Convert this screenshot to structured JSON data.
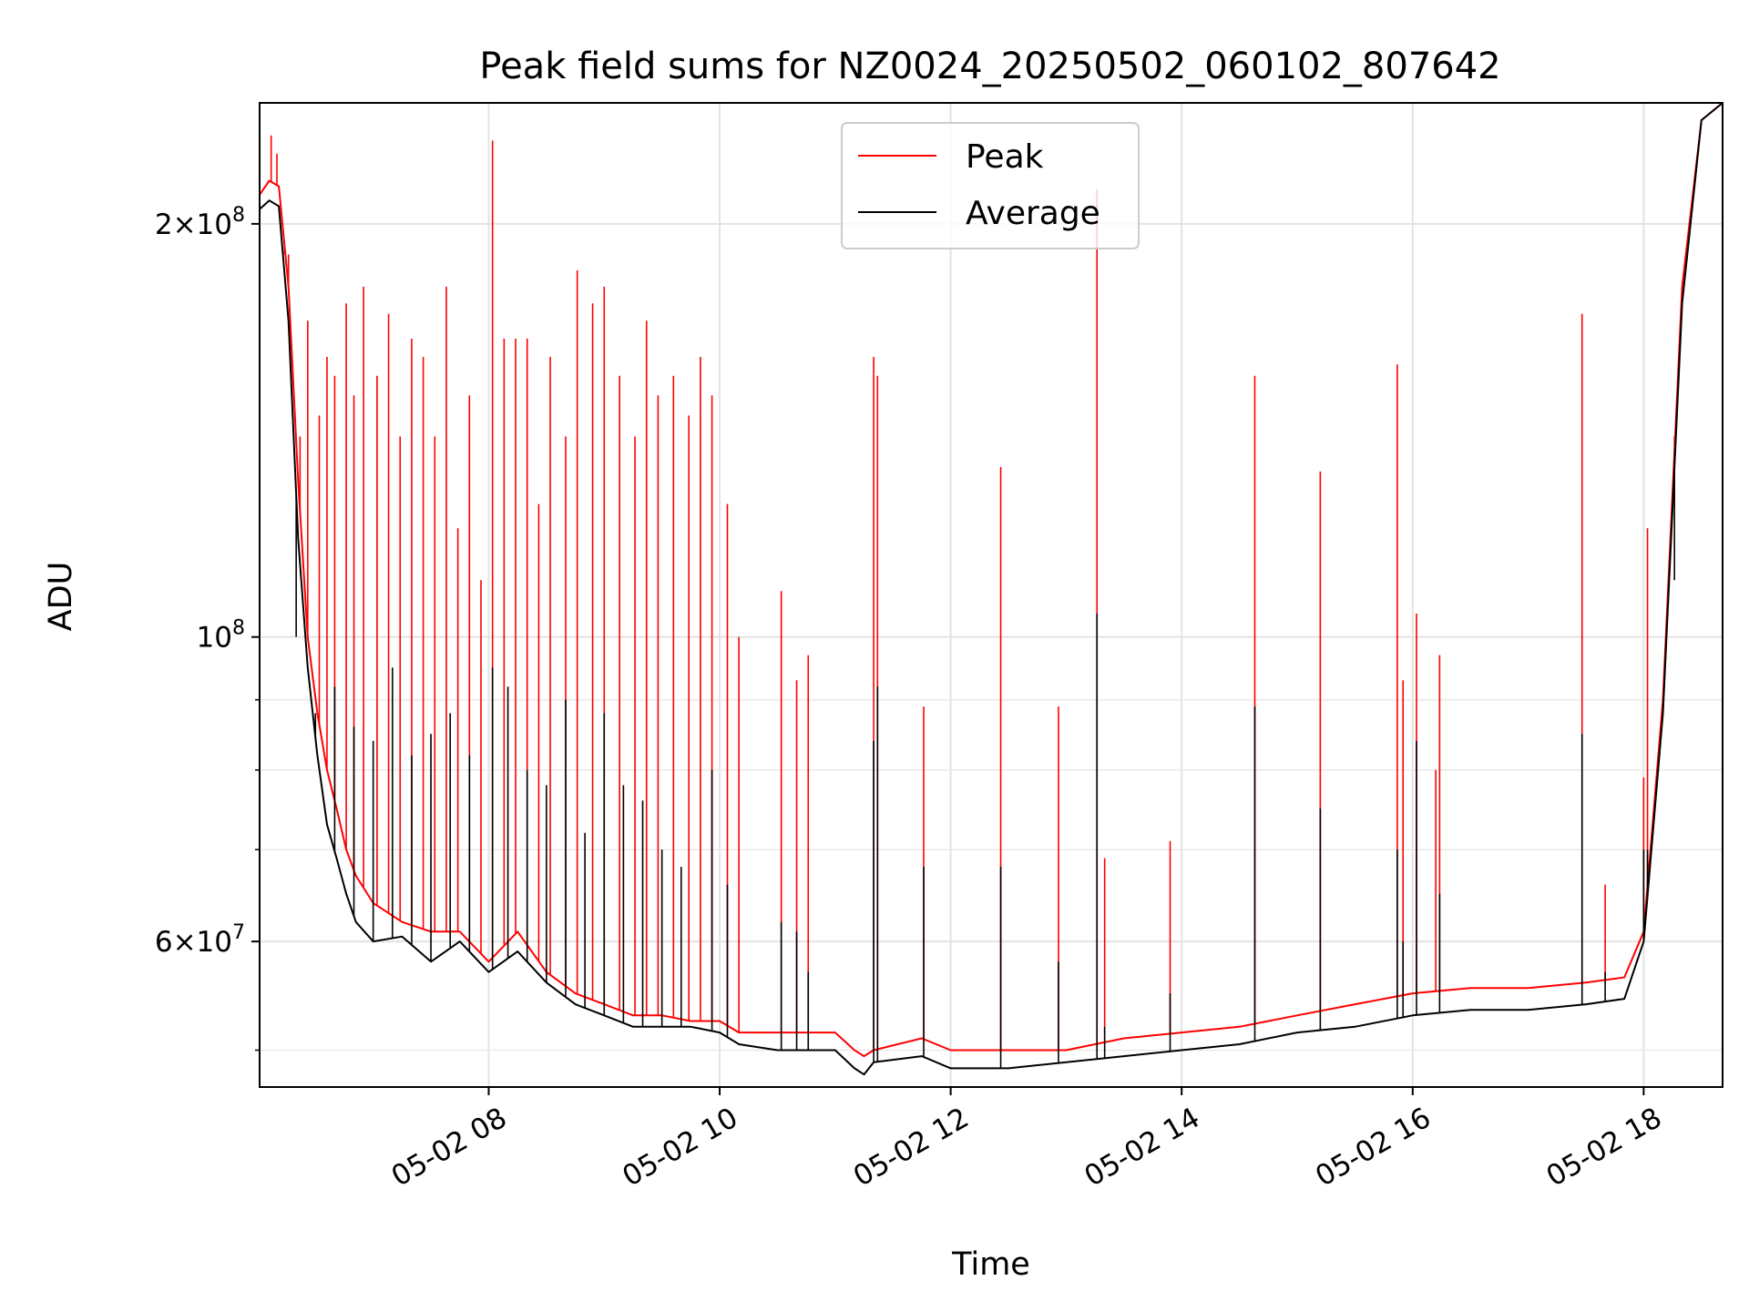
{
  "chart_data": {
    "type": "line",
    "title": "Peak field sums for NZ0024_20250502_060102_807642",
    "xlabel": "Time",
    "ylabel": "ADU",
    "y_scale": "log",
    "ylim": [
      47000000,
      245000000
    ],
    "xlim": [
      "2025-05-02T06:01",
      "2025-05-02T18:41"
    ],
    "grid": true,
    "legend": {
      "position": "upper center"
    },
    "x_tick_labels": [
      "05-02 08",
      "05-02 10",
      "05-02 12",
      "05-02 14",
      "05-02 16",
      "05-02 18"
    ],
    "x_tick_values": [
      "2025-05-02T08:00",
      "2025-05-02T10:00",
      "2025-05-02T12:00",
      "2025-05-02T14:00",
      "2025-05-02T16:00",
      "2025-05-02T18:00"
    ],
    "y_tick_labels": [
      {
        "value": 200000000,
        "mantissa": "2",
        "exponent": "8"
      },
      {
        "value": 100000000,
        "mantissa": "",
        "exponent": "8"
      },
      {
        "value": 60000000,
        "mantissa": "6",
        "exponent": "7"
      }
    ],
    "y_minor_ticks": [
      50000000,
      70000000,
      80000000,
      90000000
    ],
    "series": [
      {
        "name": "Peak",
        "color": "#ff0000",
        "x": [
          "06:01",
          "06:06",
          "06:11",
          "06:16",
          "06:21",
          "06:26",
          "06:31",
          "06:36",
          "06:41",
          "06:46",
          "06:51",
          "07:00",
          "07:15",
          "07:30",
          "07:45",
          "08:00",
          "08:15",
          "08:30",
          "08:45",
          "09:00",
          "09:15",
          "09:30",
          "09:45",
          "10:00",
          "10:10",
          "10:30",
          "11:00",
          "11:10",
          "11:15",
          "11:20",
          "11:45",
          "12:00",
          "12:30",
          "13:00",
          "13:30",
          "14:00",
          "14:30",
          "15:00",
          "15:30",
          "16:00",
          "16:30",
          "17:00",
          "17:30",
          "17:50",
          "18:00",
          "18:10",
          "18:20",
          "18:30",
          "18:41"
        ],
        "y": [
          210000000,
          215000000,
          213000000,
          180000000,
          130000000,
          100000000,
          88000000,
          80000000,
          75000000,
          70000000,
          67000000,
          64000000,
          62000000,
          61000000,
          61000000,
          58000000,
          61000000,
          57000000,
          55000000,
          54000000,
          53000000,
          53000000,
          52500000,
          52500000,
          51500000,
          51500000,
          51500000,
          50000000,
          49500000,
          50000000,
          51000000,
          50000000,
          50000000,
          50000000,
          51000000,
          51500000,
          52000000,
          53000000,
          54000000,
          55000000,
          55500000,
          55500000,
          56000000,
          56500000,
          61000000,
          90000000,
          180000000,
          238000000,
          245000000
        ],
        "spikes": [
          {
            "t": "06:07",
            "y": 232000000
          },
          {
            "t": "06:10",
            "y": 225000000
          },
          {
            "t": "06:14",
            "y": 190000000
          },
          {
            "t": "06:16",
            "y": 190000000
          },
          {
            "t": "06:22",
            "y": 140000000
          },
          {
            "t": "06:26",
            "y": 170000000
          },
          {
            "t": "06:32",
            "y": 145000000
          },
          {
            "t": "06:36",
            "y": 160000000
          },
          {
            "t": "06:40",
            "y": 155000000
          },
          {
            "t": "06:46",
            "y": 175000000
          },
          {
            "t": "06:50",
            "y": 150000000
          },
          {
            "t": "06:55",
            "y": 180000000
          },
          {
            "t": "07:02",
            "y": 155000000
          },
          {
            "t": "07:08",
            "y": 172000000
          },
          {
            "t": "07:14",
            "y": 140000000
          },
          {
            "t": "07:20",
            "y": 165000000
          },
          {
            "t": "07:26",
            "y": 160000000
          },
          {
            "t": "07:32",
            "y": 140000000
          },
          {
            "t": "07:38",
            "y": 180000000
          },
          {
            "t": "07:44",
            "y": 120000000
          },
          {
            "t": "07:50",
            "y": 150000000
          },
          {
            "t": "07:56",
            "y": 110000000
          },
          {
            "t": "08:02",
            "y": 230000000
          },
          {
            "t": "08:08",
            "y": 165000000
          },
          {
            "t": "08:14",
            "y": 165000000
          },
          {
            "t": "08:20",
            "y": 165000000
          },
          {
            "t": "08:26",
            "y": 125000000
          },
          {
            "t": "08:32",
            "y": 160000000
          },
          {
            "t": "08:40",
            "y": 140000000
          },
          {
            "t": "08:46",
            "y": 185000000
          },
          {
            "t": "08:54",
            "y": 175000000
          },
          {
            "t": "09:00",
            "y": 180000000
          },
          {
            "t": "09:08",
            "y": 155000000
          },
          {
            "t": "09:16",
            "y": 140000000
          },
          {
            "t": "09:22",
            "y": 170000000
          },
          {
            "t": "09:28",
            "y": 150000000
          },
          {
            "t": "09:36",
            "y": 155000000
          },
          {
            "t": "09:44",
            "y": 145000000
          },
          {
            "t": "09:50",
            "y": 160000000
          },
          {
            "t": "09:56",
            "y": 150000000
          },
          {
            "t": "10:04",
            "y": 125000000
          },
          {
            "t": "10:10",
            "y": 100000000
          },
          {
            "t": "10:32",
            "y": 108000000
          },
          {
            "t": "10:40",
            "y": 93000000
          },
          {
            "t": "10:46",
            "y": 97000000
          },
          {
            "t": "11:20",
            "y": 160000000
          },
          {
            "t": "11:22",
            "y": 155000000
          },
          {
            "t": "11:46",
            "y": 89000000
          },
          {
            "t": "12:26",
            "y": 133000000
          },
          {
            "t": "12:56",
            "y": 89000000
          },
          {
            "t": "13:16",
            "y": 212000000
          },
          {
            "t": "13:20",
            "y": 69000000
          },
          {
            "t": "13:54",
            "y": 71000000
          },
          {
            "t": "14:38",
            "y": 155000000
          },
          {
            "t": "15:12",
            "y": 132000000
          },
          {
            "t": "15:52",
            "y": 158000000
          },
          {
            "t": "15:55",
            "y": 93000000
          },
          {
            "t": "16:02",
            "y": 104000000
          },
          {
            "t": "16:12",
            "y": 80000000
          },
          {
            "t": "16:14",
            "y": 97000000
          },
          {
            "t": "17:28",
            "y": 172000000
          },
          {
            "t": "17:40",
            "y": 66000000
          },
          {
            "t": "18:00",
            "y": 79000000
          },
          {
            "t": "18:02",
            "y": 120000000
          },
          {
            "t": "18:16",
            "y": 140000000
          }
        ]
      },
      {
        "name": "Average",
        "color": "#000000",
        "x": [
          "06:01",
          "06:06",
          "06:11",
          "06:16",
          "06:21",
          "06:26",
          "06:31",
          "06:36",
          "06:41",
          "06:46",
          "06:51",
          "07:00",
          "07:15",
          "07:30",
          "07:45",
          "08:00",
          "08:15",
          "08:30",
          "08:45",
          "09:00",
          "09:15",
          "09:30",
          "09:45",
          "10:00",
          "10:10",
          "10:30",
          "11:00",
          "11:10",
          "11:15",
          "11:20",
          "11:45",
          "12:00",
          "12:30",
          "13:00",
          "13:30",
          "14:00",
          "14:30",
          "15:00",
          "15:30",
          "16:00",
          "16:30",
          "17:00",
          "17:30",
          "17:50",
          "18:00",
          "18:10",
          "18:20",
          "18:30",
          "18:41"
        ],
        "y": [
          205000000,
          208000000,
          206000000,
          170000000,
          118000000,
          95000000,
          82000000,
          73000000,
          69000000,
          65000000,
          62000000,
          60000000,
          60500000,
          58000000,
          60000000,
          57000000,
          59000000,
          56000000,
          54000000,
          53000000,
          52000000,
          52000000,
          52000000,
          51500000,
          50500000,
          50000000,
          50000000,
          48500000,
          48000000,
          49000000,
          49500000,
          48500000,
          48500000,
          49000000,
          49500000,
          50000000,
          50500000,
          51500000,
          52000000,
          53000000,
          53500000,
          53500000,
          54000000,
          54500000,
          60000000,
          88000000,
          175000000,
          238000000,
          245000000
        ],
        "spikes": [
          {
            "t": "06:20",
            "y": 100000000
          },
          {
            "t": "06:30",
            "y": 88000000
          },
          {
            "t": "06:40",
            "y": 92000000
          },
          {
            "t": "06:50",
            "y": 86000000
          },
          {
            "t": "07:00",
            "y": 84000000
          },
          {
            "t": "07:10",
            "y": 95000000
          },
          {
            "t": "07:20",
            "y": 82000000
          },
          {
            "t": "07:30",
            "y": 85000000
          },
          {
            "t": "07:40",
            "y": 88000000
          },
          {
            "t": "07:50",
            "y": 82000000
          },
          {
            "t": "08:02",
            "y": 95000000
          },
          {
            "t": "08:10",
            "y": 92000000
          },
          {
            "t": "08:20",
            "y": 80000000
          },
          {
            "t": "08:30",
            "y": 78000000
          },
          {
            "t": "08:40",
            "y": 90000000
          },
          {
            "t": "08:50",
            "y": 72000000
          },
          {
            "t": "09:00",
            "y": 88000000
          },
          {
            "t": "09:10",
            "y": 78000000
          },
          {
            "t": "09:20",
            "y": 76000000
          },
          {
            "t": "09:30",
            "y": 70000000
          },
          {
            "t": "09:40",
            "y": 68000000
          },
          {
            "t": "09:56",
            "y": 80000000
          },
          {
            "t": "10:04",
            "y": 66000000
          },
          {
            "t": "10:32",
            "y": 62000000
          },
          {
            "t": "10:40",
            "y": 61000000
          },
          {
            "t": "10:46",
            "y": 57000000
          },
          {
            "t": "11:20",
            "y": 84000000
          },
          {
            "t": "11:22",
            "y": 92000000
          },
          {
            "t": "11:46",
            "y": 68000000
          },
          {
            "t": "12:26",
            "y": 68000000
          },
          {
            "t": "12:56",
            "y": 58000000
          },
          {
            "t": "13:16",
            "y": 104000000
          },
          {
            "t": "13:20",
            "y": 52000000
          },
          {
            "t": "13:54",
            "y": 55000000
          },
          {
            "t": "14:38",
            "y": 89000000
          },
          {
            "t": "15:12",
            "y": 75000000
          },
          {
            "t": "15:52",
            "y": 70000000
          },
          {
            "t": "15:55",
            "y": 60000000
          },
          {
            "t": "16:02",
            "y": 84000000
          },
          {
            "t": "16:14",
            "y": 65000000
          },
          {
            "t": "17:28",
            "y": 85000000
          },
          {
            "t": "17:40",
            "y": 57000000
          },
          {
            "t": "18:00",
            "y": 70000000
          },
          {
            "t": "18:02",
            "y": 70000000
          },
          {
            "t": "18:16",
            "y": 110000000
          }
        ]
      }
    ]
  }
}
